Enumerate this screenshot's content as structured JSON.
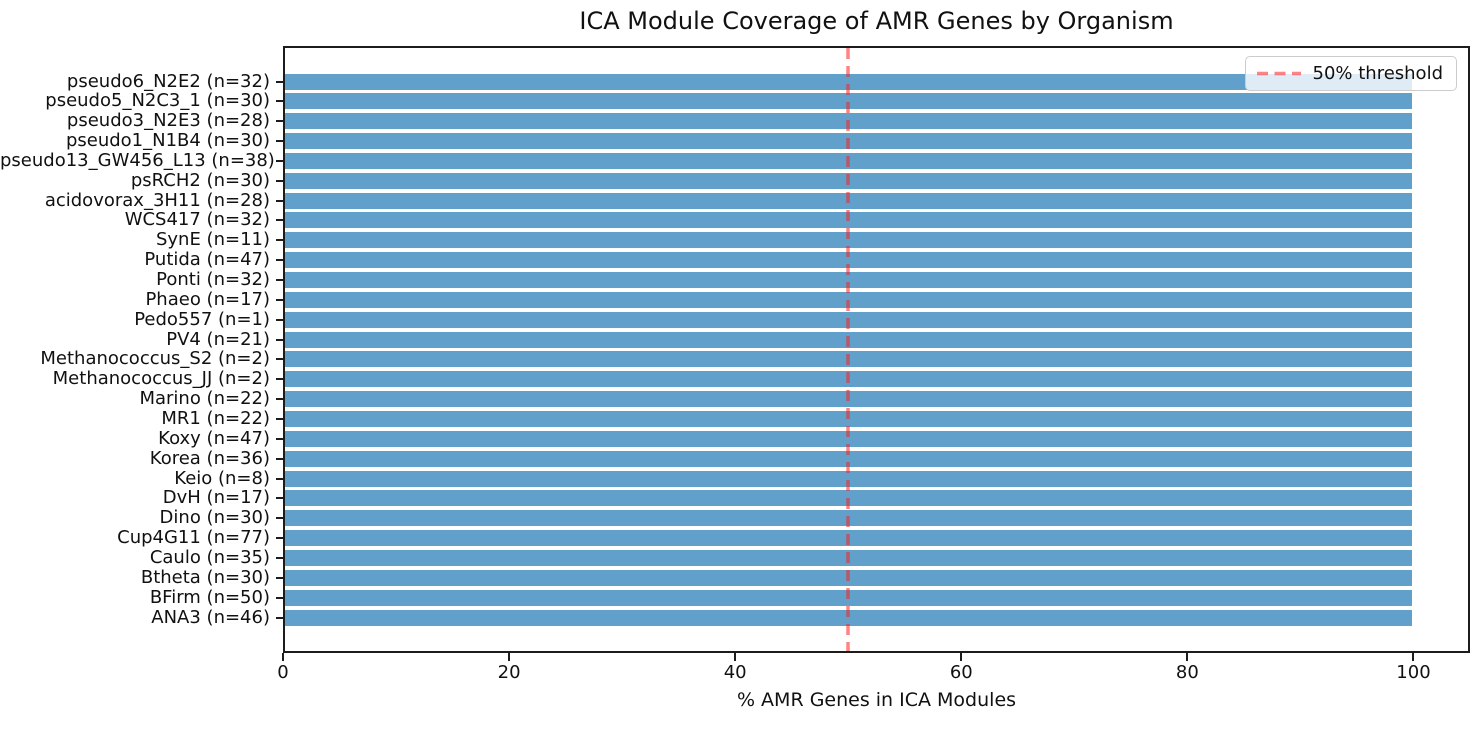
{
  "chart_data": {
    "type": "bar",
    "orientation": "horizontal",
    "title": "ICA Module Coverage of AMR Genes by Organism",
    "xlabel": "% AMR Genes in ICA Modules",
    "ylabel": "",
    "xlim": [
      0,
      105
    ],
    "xticks": [
      0,
      20,
      40,
      60,
      80,
      100
    ],
    "grid": false,
    "bar_color": "#60a0cb",
    "categories": [
      "pseudo6_N2E2 (n=32)",
      "pseudo5_N2C3_1 (n=30)",
      "pseudo3_N2E3 (n=28)",
      "pseudo1_N1B4 (n=30)",
      "pseudo13_GW456_L13 (n=38)",
      "psRCH2 (n=30)",
      "acidovorax_3H11 (n=28)",
      "WCS417 (n=32)",
      "SynE (n=11)",
      "Putida (n=47)",
      "Ponti (n=32)",
      "Phaeo (n=17)",
      "Pedo557 (n=1)",
      "PV4 (n=21)",
      "Methanococcus_S2 (n=2)",
      "Methanococcus_JJ (n=2)",
      "Marino (n=22)",
      "MR1 (n=22)",
      "Koxy (n=47)",
      "Korea (n=36)",
      "Keio (n=8)",
      "DvH (n=17)",
      "Dino (n=30)",
      "Cup4G11 (n=77)",
      "Caulo (n=35)",
      "Btheta (n=30)",
      "BFirm (n=50)",
      "ANA3 (n=46)"
    ],
    "values": [
      100,
      100,
      100,
      100,
      100,
      100,
      100,
      100,
      100,
      100,
      100,
      100,
      100,
      100,
      100,
      100,
      100,
      100,
      100,
      100,
      100,
      100,
      100,
      100,
      100,
      100,
      100,
      100
    ],
    "threshold_line": {
      "value": 50,
      "label": "50% threshold",
      "color": "rgba(255,30,30,0.55)",
      "style": "dashed"
    },
    "legend": {
      "position": "upper right",
      "entries": [
        "50% threshold"
      ]
    }
  }
}
